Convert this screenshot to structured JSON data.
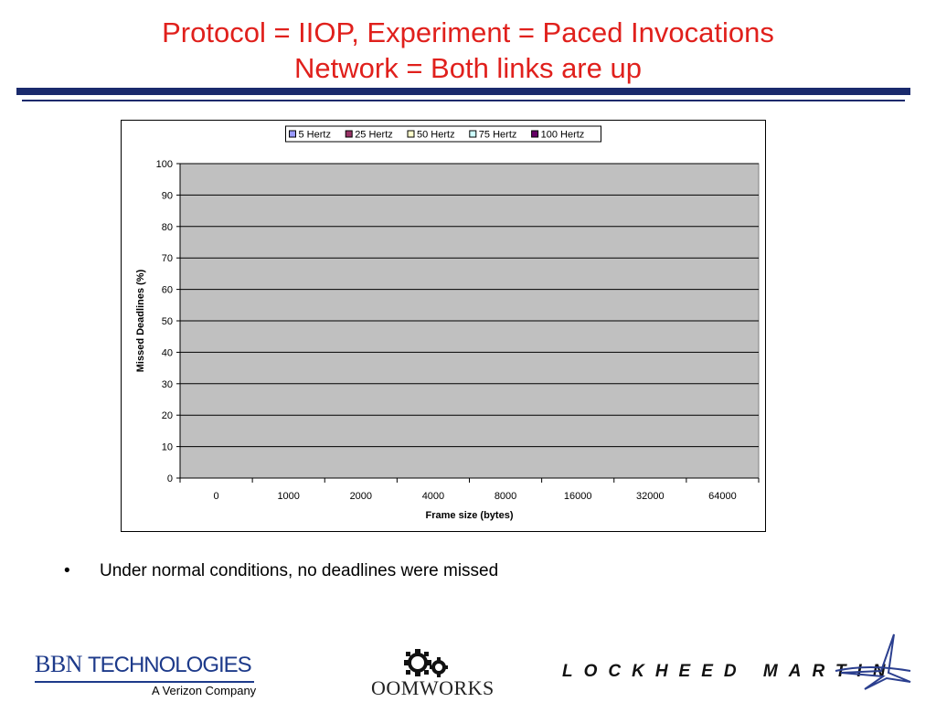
{
  "slide": {
    "title_line1": "Protocol = IIOP, Experiment = Paced Invocations",
    "title_line2": "Network = Both links are up",
    "bullet_marker": "•",
    "bullet_text": "Under normal conditions, no deadlines were missed",
    "title_color": "#e0201c",
    "rule_color": "#1a2a6c"
  },
  "logos": {
    "bbn_name": "BBN",
    "bbn_tech": "TECHNOLOGIES",
    "bbn_subtitle": "A Verizon Company",
    "oomworks": "OOMWORKS",
    "oomworks_icon": "gears-icon",
    "lockheed": "LOCKHEED MARTIN",
    "lockheed_icon": "star-swoosh-icon"
  },
  "chart_data": {
    "type": "bar",
    "title": "",
    "xlabel": "Frame size (bytes)",
    "ylabel": "Missed Deadlines (%)",
    "categories": [
      "0",
      "1000",
      "2000",
      "4000",
      "8000",
      "16000",
      "32000",
      "64000"
    ],
    "ylim": [
      0,
      100
    ],
    "yticks": [
      0,
      10,
      20,
      30,
      40,
      50,
      60,
      70,
      80,
      90,
      100
    ],
    "grid": true,
    "legend_position": "top",
    "plot_background": "#c0c0c0",
    "series": [
      {
        "name": "5 Hertz",
        "color": "#9999ff",
        "values": [
          0,
          0,
          0,
          0,
          0,
          0,
          0,
          0
        ]
      },
      {
        "name": "25 Hertz",
        "color": "#993366",
        "values": [
          0,
          0,
          0,
          0,
          0,
          0,
          0,
          0
        ]
      },
      {
        "name": "50 Hertz",
        "color": "#ffffcc",
        "values": [
          0,
          0,
          0,
          0,
          0,
          0,
          0,
          0
        ]
      },
      {
        "name": "75 Hertz",
        "color": "#ccffff",
        "values": [
          0,
          0,
          0,
          0,
          0,
          0,
          0,
          0
        ]
      },
      {
        "name": "100 Hertz",
        "color": "#660066",
        "values": [
          0,
          0,
          0,
          0,
          0,
          0,
          0,
          0
        ]
      }
    ]
  }
}
